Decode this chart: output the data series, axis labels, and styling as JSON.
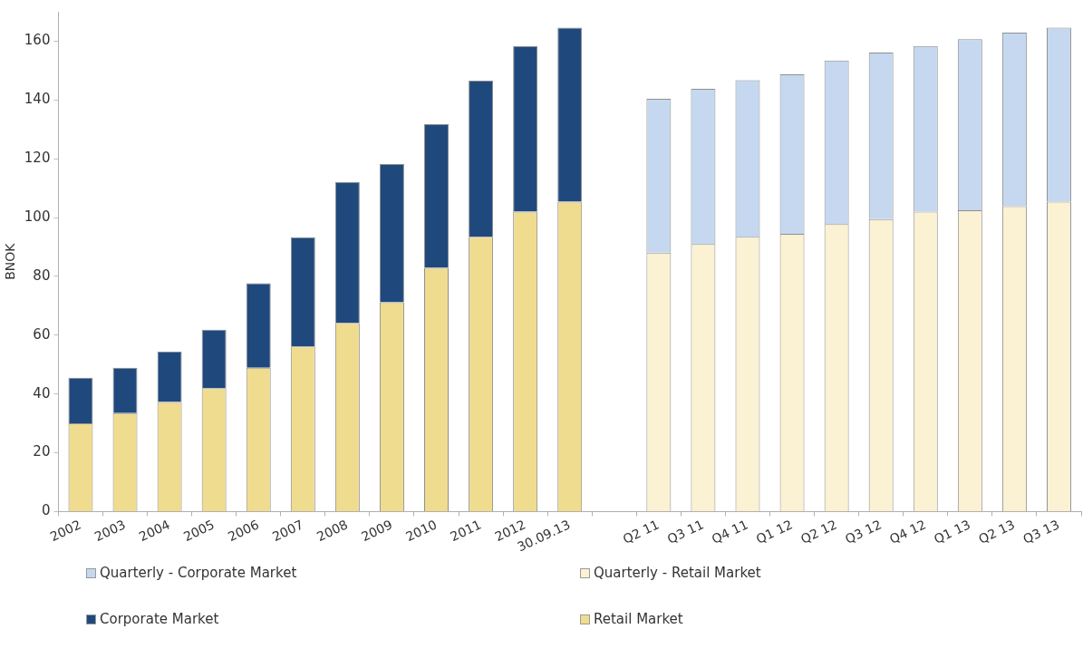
{
  "chart_data": {
    "type": "bar",
    "stacked": true,
    "ylabel": "BNOK",
    "ylim": [
      0,
      170
    ],
    "yticks": [
      0,
      20,
      40,
      60,
      80,
      100,
      120,
      140,
      160
    ],
    "legend": "bottom",
    "categories": [
      "2002",
      "2003",
      "2004",
      "2005",
      "2006",
      "2007",
      "2008",
      "2009",
      "2010",
      "2011",
      "2012",
      "30.09.13",
      null,
      "Q2 11",
      "Q3 11",
      "Q4 11",
      "Q1 12",
      "Q2 12",
      "Q3 12",
      "Q4 12",
      "Q1 13",
      "Q2 13",
      "Q3 13"
    ],
    "series": [
      {
        "name": "Retail Market",
        "color": "#efdc8f",
        "values": [
          30,
          33.5,
          37.3,
          42,
          48.9,
          56.2,
          64.2,
          71.2,
          82.9,
          93.5,
          102,
          105.4,
          null,
          null,
          null,
          null,
          null,
          null,
          null,
          null,
          null,
          null,
          null
        ]
      },
      {
        "name": "Corporate Market",
        "color": "#1f497d",
        "values": [
          15.5,
          15.4,
          17.1,
          19.9,
          28.8,
          37.1,
          47.9,
          47,
          48.9,
          53.1,
          56.4,
          59.2,
          null,
          null,
          null,
          null,
          null,
          null,
          null,
          null,
          null,
          null,
          null
        ]
      },
      {
        "name": "Quarterly - Retail Market",
        "color": "#fbf1d3",
        "values": [
          null,
          null,
          null,
          null,
          null,
          null,
          null,
          null,
          null,
          null,
          null,
          null,
          null,
          88.1,
          91,
          93.5,
          94.5,
          97.8,
          99.5,
          102,
          102.5,
          103.9,
          105.4
        ]
      },
      {
        "name": "Quarterly - Corporate Market",
        "color": "#c5d8f0",
        "values": [
          null,
          null,
          null,
          null,
          null,
          null,
          null,
          null,
          null,
          null,
          null,
          null,
          null,
          52.3,
          52.8,
          53.2,
          54.2,
          55.6,
          56.6,
          56.4,
          58.2,
          59,
          59.2
        ]
      }
    ]
  }
}
